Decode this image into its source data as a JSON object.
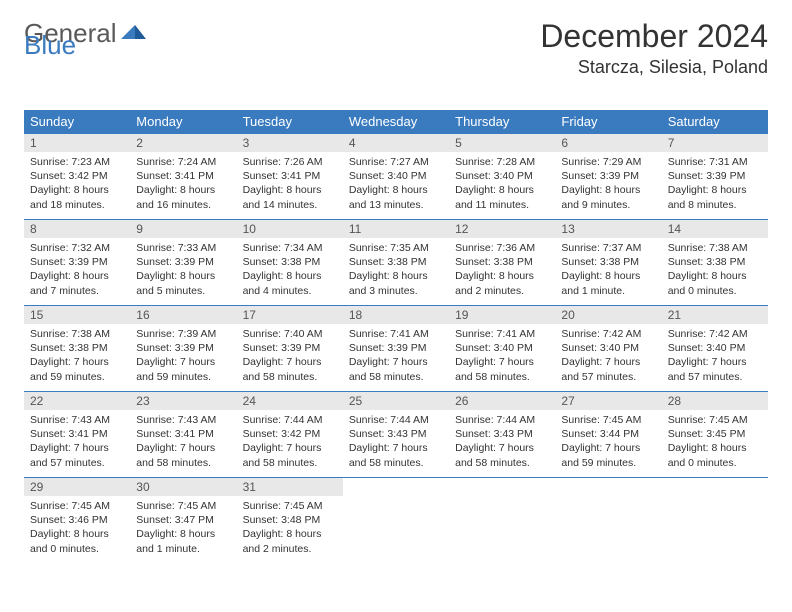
{
  "logo": {
    "text1": "General",
    "text2": "Blue"
  },
  "title": "December 2024",
  "location": "Starcza, Silesia, Poland",
  "colors": {
    "header_bg": "#3a7bbf",
    "header_text": "#ffffff",
    "daynum_bg": "#e8e8e8",
    "border": "#3a7bbf",
    "logo_gray": "#595959",
    "logo_blue": "#3a7bbf"
  },
  "weekdays": [
    "Sunday",
    "Monday",
    "Tuesday",
    "Wednesday",
    "Thursday",
    "Friday",
    "Saturday"
  ],
  "days": [
    {
      "n": 1,
      "sunrise": "7:23 AM",
      "sunset": "3:42 PM",
      "daylight": "8 hours and 18 minutes."
    },
    {
      "n": 2,
      "sunrise": "7:24 AM",
      "sunset": "3:41 PM",
      "daylight": "8 hours and 16 minutes."
    },
    {
      "n": 3,
      "sunrise": "7:26 AM",
      "sunset": "3:41 PM",
      "daylight": "8 hours and 14 minutes."
    },
    {
      "n": 4,
      "sunrise": "7:27 AM",
      "sunset": "3:40 PM",
      "daylight": "8 hours and 13 minutes."
    },
    {
      "n": 5,
      "sunrise": "7:28 AM",
      "sunset": "3:40 PM",
      "daylight": "8 hours and 11 minutes."
    },
    {
      "n": 6,
      "sunrise": "7:29 AM",
      "sunset": "3:39 PM",
      "daylight": "8 hours and 9 minutes."
    },
    {
      "n": 7,
      "sunrise": "7:31 AM",
      "sunset": "3:39 PM",
      "daylight": "8 hours and 8 minutes."
    },
    {
      "n": 8,
      "sunrise": "7:32 AM",
      "sunset": "3:39 PM",
      "daylight": "8 hours and 7 minutes."
    },
    {
      "n": 9,
      "sunrise": "7:33 AM",
      "sunset": "3:39 PM",
      "daylight": "8 hours and 5 minutes."
    },
    {
      "n": 10,
      "sunrise": "7:34 AM",
      "sunset": "3:38 PM",
      "daylight": "8 hours and 4 minutes."
    },
    {
      "n": 11,
      "sunrise": "7:35 AM",
      "sunset": "3:38 PM",
      "daylight": "8 hours and 3 minutes."
    },
    {
      "n": 12,
      "sunrise": "7:36 AM",
      "sunset": "3:38 PM",
      "daylight": "8 hours and 2 minutes."
    },
    {
      "n": 13,
      "sunrise": "7:37 AM",
      "sunset": "3:38 PM",
      "daylight": "8 hours and 1 minute."
    },
    {
      "n": 14,
      "sunrise": "7:38 AM",
      "sunset": "3:38 PM",
      "daylight": "8 hours and 0 minutes."
    },
    {
      "n": 15,
      "sunrise": "7:38 AM",
      "sunset": "3:38 PM",
      "daylight": "7 hours and 59 minutes."
    },
    {
      "n": 16,
      "sunrise": "7:39 AM",
      "sunset": "3:39 PM",
      "daylight": "7 hours and 59 minutes."
    },
    {
      "n": 17,
      "sunrise": "7:40 AM",
      "sunset": "3:39 PM",
      "daylight": "7 hours and 58 minutes."
    },
    {
      "n": 18,
      "sunrise": "7:41 AM",
      "sunset": "3:39 PM",
      "daylight": "7 hours and 58 minutes."
    },
    {
      "n": 19,
      "sunrise": "7:41 AM",
      "sunset": "3:40 PM",
      "daylight": "7 hours and 58 minutes."
    },
    {
      "n": 20,
      "sunrise": "7:42 AM",
      "sunset": "3:40 PM",
      "daylight": "7 hours and 57 minutes."
    },
    {
      "n": 21,
      "sunrise": "7:42 AM",
      "sunset": "3:40 PM",
      "daylight": "7 hours and 57 minutes."
    },
    {
      "n": 22,
      "sunrise": "7:43 AM",
      "sunset": "3:41 PM",
      "daylight": "7 hours and 57 minutes."
    },
    {
      "n": 23,
      "sunrise": "7:43 AM",
      "sunset": "3:41 PM",
      "daylight": "7 hours and 58 minutes."
    },
    {
      "n": 24,
      "sunrise": "7:44 AM",
      "sunset": "3:42 PM",
      "daylight": "7 hours and 58 minutes."
    },
    {
      "n": 25,
      "sunrise": "7:44 AM",
      "sunset": "3:43 PM",
      "daylight": "7 hours and 58 minutes."
    },
    {
      "n": 26,
      "sunrise": "7:44 AM",
      "sunset": "3:43 PM",
      "daylight": "7 hours and 58 minutes."
    },
    {
      "n": 27,
      "sunrise": "7:45 AM",
      "sunset": "3:44 PM",
      "daylight": "7 hours and 59 minutes."
    },
    {
      "n": 28,
      "sunrise": "7:45 AM",
      "sunset": "3:45 PM",
      "daylight": "8 hours and 0 minutes."
    },
    {
      "n": 29,
      "sunrise": "7:45 AM",
      "sunset": "3:46 PM",
      "daylight": "8 hours and 0 minutes."
    },
    {
      "n": 30,
      "sunrise": "7:45 AM",
      "sunset": "3:47 PM",
      "daylight": "8 hours and 1 minute."
    },
    {
      "n": 31,
      "sunrise": "7:45 AM",
      "sunset": "3:48 PM",
      "daylight": "8 hours and 2 minutes."
    }
  ],
  "labels": {
    "sunrise": "Sunrise: ",
    "sunset": "Sunset: ",
    "daylight": "Daylight: "
  }
}
